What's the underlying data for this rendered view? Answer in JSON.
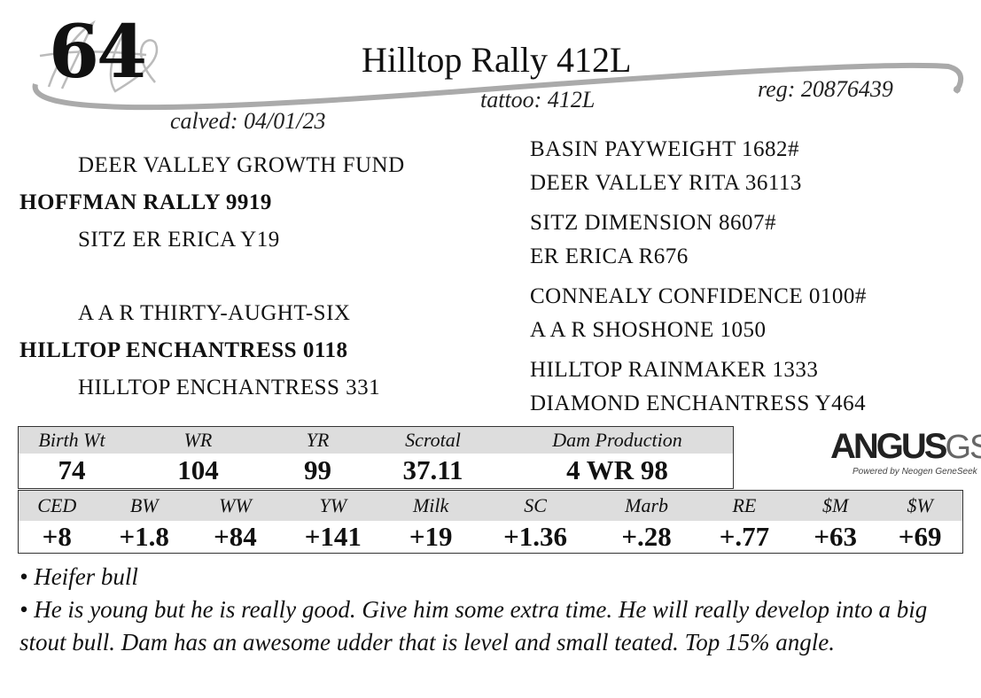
{
  "lot_number": "64",
  "animal_name": "Hilltop Rally 412L",
  "tattoo": "tattoo: 412L",
  "registration": "reg: 20876439",
  "calved": "calved: 04/01/23",
  "logo_script": "HE",
  "pedigree": {
    "sire_sire": "DEER VALLEY GROWTH FUND",
    "sire": "HOFFMAN RALLY 9919",
    "sire_dam": "SITZ ER ERICA Y19",
    "dam_sire": "A A R THIRTY-AUGHT-SIX",
    "dam": "HILLTOP ENCHANTRESS 0118",
    "dam_dam": "HILLTOP ENCHANTRESS 331",
    "ancestors": [
      "BASIN PAYWEIGHT 1682#",
      "DEER VALLEY RITA 36113",
      "SITZ DIMENSION 8607#",
      "ER ERICA R676",
      "CONNEALY CONFIDENCE 0100#",
      "A A R SHOSHONE 1050",
      "HILLTOP RAINMAKER 1333",
      "DIAMOND ENCHANTRESS Y464"
    ]
  },
  "performance": {
    "headers": [
      "Birth Wt",
      "WR",
      "YR",
      "Scrotal",
      "Dam Production"
    ],
    "values": [
      "74",
      "104",
      "99",
      "37.11",
      "4 WR 98"
    ]
  },
  "epds": {
    "headers": [
      "CED",
      "BW",
      "WW",
      "YW",
      "Milk",
      "SC",
      "Marb",
      "RE",
      "$M",
      "$W"
    ],
    "values": [
      "+8",
      "+1.8",
      "+84",
      "+141",
      "+19",
      "+1.36",
      "+.28",
      "+.77",
      "+63",
      "+69"
    ]
  },
  "angus_logo": {
    "main": "ANGUS",
    "suffix": "GS",
    "tagline": "Powered by Neogen GeneSeek"
  },
  "notes": [
    "• Heifer bull",
    "• He is young but he is really good. Give him some extra time. He will really develop into a big stout bull. Dam has an awesome udder that is level and small teated.  Top 15% angle."
  ]
}
